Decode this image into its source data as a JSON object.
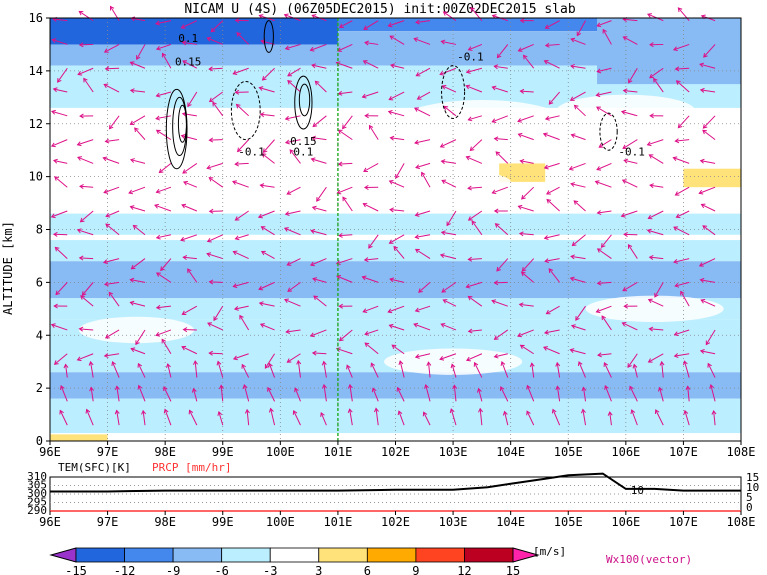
{
  "chart_data": [
    {
      "type": "heatmap",
      "title": "NICAM U (4S) (06Z05DEC2015) init:00Z02DEC2015 slab",
      "ylabel": "ALTITUDE [km]",
      "x_ticks": [
        "96E",
        "97E",
        "98E",
        "99E",
        "100E",
        "101E",
        "102E",
        "103E",
        "104E",
        "105E",
        "106E",
        "107E",
        "108E"
      ],
      "y_ticks": [
        "0",
        "2",
        "4",
        "6",
        "8",
        "10",
        "12",
        "14",
        "16"
      ],
      "xlim": [
        96,
        108
      ],
      "ylim": [
        0,
        16
      ],
      "marker_longitude": 101,
      "grid": true,
      "contour_labels": [
        "0.1",
        "0.15",
        "-0.1",
        "0.15",
        "0.1",
        "-0.1",
        "-0.1"
      ],
      "vector_label": "Wx100(vector)",
      "u_bands": [
        {
          "z": [
            15.5,
            16
          ],
          "level": -9
        },
        {
          "z": [
            14.2,
            15.5
          ],
          "level": -6
        },
        {
          "z": [
            12.6,
            14.2
          ],
          "level": -3
        },
        {
          "z": [
            7.8,
            8.6
          ],
          "level": -3
        },
        {
          "z": [
            6.8,
            7.6
          ],
          "level": -3
        },
        {
          "z": [
            5.4,
            6.8
          ],
          "level": -6
        },
        {
          "z": [
            4.6,
            5.4
          ],
          "level": -3
        },
        {
          "z": [
            3.5,
            4.6
          ],
          "level": -3
        },
        {
          "z": [
            2.6,
            3.5
          ],
          "level": -3
        },
        {
          "z": [
            1.6,
            2.6
          ],
          "level": -6
        },
        {
          "z": [
            0.3,
            1.6
          ],
          "level": -3
        }
      ],
      "u_patches": [
        {
          "x": [
            96,
            101
          ],
          "z": [
            15,
            16
          ],
          "level": -12
        },
        {
          "x": [
            105.5,
            108
          ],
          "z": [
            13.5,
            16
          ],
          "level": -6
        },
        {
          "x": [
            103.8,
            104.6
          ],
          "z": [
            9.8,
            10.5
          ],
          "level": 3
        },
        {
          "x": [
            107,
            108
          ],
          "z": [
            9.6,
            10.3
          ],
          "level": 3
        },
        {
          "x": [
            96,
            97
          ],
          "z": [
            0,
            0.25
          ],
          "level": 3
        }
      ]
    },
    {
      "type": "line",
      "series": [
        {
          "name": "TEM(SFC)[K]",
          "color": "#000000",
          "x": [
            96,
            97,
            98,
            99,
            100,
            101,
            102,
            103,
            103.6,
            104,
            104.6,
            105,
            105.6,
            106,
            106.5,
            107,
            107.5,
            108
          ],
          "values": [
            301.5,
            301.5,
            302.0,
            302.0,
            302.0,
            302.0,
            302.5,
            302.5,
            304.0,
            306.0,
            309.0,
            311.0,
            312.0,
            303.0,
            303.0,
            302.0,
            302.0,
            302.0
          ]
        },
        {
          "name": "PRCP [mm/hr]",
          "color": "#ff3333",
          "x": [
            96,
            97,
            98,
            99,
            100,
            101,
            102,
            103,
            104,
            105,
            106,
            107,
            108
          ],
          "values": [
            0,
            0,
            0,
            0,
            0,
            0,
            0,
            0,
            0,
            0,
            0,
            0,
            0
          ]
        }
      ],
      "y_ticks_left": [
        "310",
        "305",
        "300",
        "295",
        "290"
      ],
      "y_ticks_right": [
        "15",
        "10",
        "5",
        "0"
      ],
      "x_ticks": [
        "96E",
        "97E",
        "98E",
        "99E",
        "100E",
        "101E",
        "102E",
        "103E",
        "104E",
        "105E",
        "106E",
        "107E",
        "108E"
      ],
      "annotation": "10"
    }
  ],
  "colorbar": {
    "levels": [
      "-15",
      "-12",
      "-9",
      "-6",
      "-3",
      "3",
      "6",
      "9",
      "12",
      "15"
    ],
    "colors": [
      "#9933cc",
      "#2266dd",
      "#4488ee",
      "#88bbf4",
      "#bbeeff",
      "#ffffff",
      "#ffe37a",
      "#ffaa00",
      "#ff4422",
      "#bb0022",
      "#ff22aa"
    ],
    "unit": "[m/s]"
  },
  "palette": {
    "-12": "#2266dd",
    "-9": "#4488ee",
    "-6": "#88bbf4",
    "-3": "#bbeeff",
    "3": "#ffe37a",
    "vector": "#dd1188",
    "contour": "#000000",
    "divider": "#22aa22"
  }
}
